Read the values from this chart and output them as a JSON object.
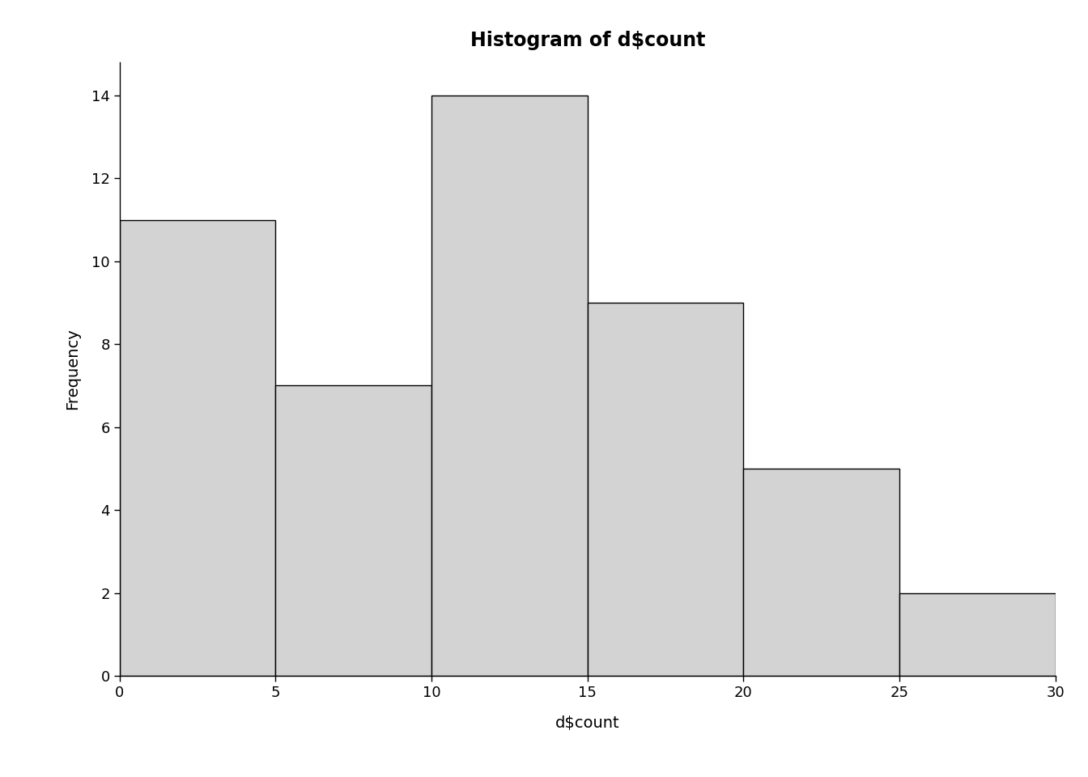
{
  "title": "Histogram of d$count",
  "xlabel": "d$count",
  "ylabel": "Frequency",
  "bar_edges": [
    0,
    5,
    10,
    15,
    20,
    25,
    30
  ],
  "bar_heights": [
    11,
    7,
    14,
    9,
    5,
    2
  ],
  "bar_color": "#d3d3d3",
  "bar_edgecolor": "#000000",
  "xlim": [
    0,
    30
  ],
  "ylim": [
    0,
    14.8
  ],
  "yticks": [
    0,
    2,
    4,
    6,
    8,
    10,
    12,
    14
  ],
  "xticks": [
    0,
    5,
    10,
    15,
    20,
    25,
    30
  ],
  "title_fontsize": 17,
  "title_fontweight": "bold",
  "label_fontsize": 14,
  "tick_fontsize": 13,
  "background_color": "#ffffff"
}
